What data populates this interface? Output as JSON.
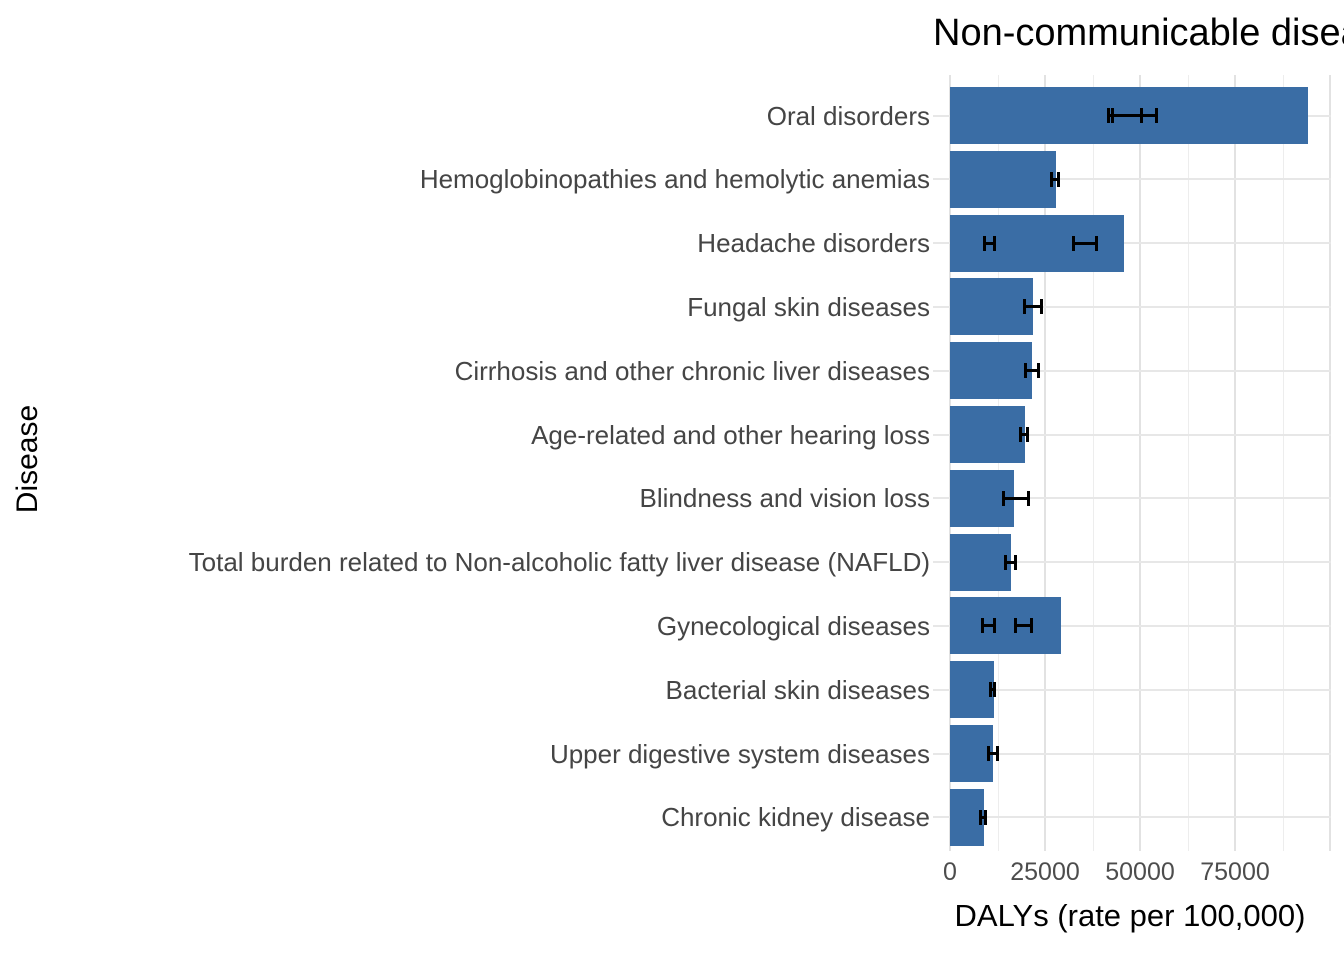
{
  "title": "Non-communicable diseases",
  "axes": {
    "x_title": "DALYs (rate per 100,000)",
    "y_title": "Disease"
  },
  "colors": {
    "bar": "#3a6da5",
    "error_bar": "#000000",
    "grid_major": "#e2e2e2",
    "grid_minor": "#ededed",
    "axis_text": "#454545",
    "tick_text": "#4d4d4d",
    "title_text": "#000000",
    "background": "#ffffff"
  },
  "chart_data": {
    "type": "bar",
    "orientation": "horizontal",
    "title": "Non-communicable diseases",
    "xlabel": "DALYs (rate per 100,000)",
    "ylabel": "Disease",
    "grid": true,
    "legend_position": "none",
    "x_ticks": [
      0,
      25000,
      50000,
      75000
    ],
    "x_tick_labels": [
      "0",
      "25000",
      "50000",
      "75000"
    ],
    "x_minor_ticks": [
      12500,
      37500,
      62500,
      87500
    ],
    "x_grid_extent": 100000,
    "xlim_visible": [
      0,
      103500
    ],
    "categories": [
      "Oral disorders",
      "Hemoglobinopathies and hemolytic anemias",
      "Headache disorders",
      "Fungal skin diseases",
      "Cirrhosis and other chronic liver diseases",
      "Age-related and other hearing loss",
      "Blindness and vision loss",
      "Total burden related to Non-alcoholic fatty liver disease (NAFLD)",
      "Gynecological diseases",
      "Bacterial skin diseases",
      "Upper digestive system diseases",
      "Chronic kidney disease"
    ],
    "values": [
      94200,
      27900,
      45800,
      21900,
      21600,
      19700,
      16900,
      16100,
      29100,
      11500,
      11400,
      9000
    ],
    "error_bars_low_high": [
      [
        [
          41700,
          50400
        ],
        [
          42600,
          54400
        ]
      ],
      [
        [
          26500,
          28800
        ]
      ],
      [
        [
          8900,
          11800
        ],
        [
          32400,
          38600
        ]
      ],
      [
        [
          19500,
          24100
        ]
      ],
      [
        [
          19700,
          23500
        ]
      ],
      [
        [
          18400,
          20600
        ]
      ],
      [
        [
          13900,
          20900
        ]
      ],
      [
        [
          14500,
          17400
        ]
      ],
      [
        [
          8300,
          11800
        ],
        [
          17100,
          21500
        ]
      ],
      [
        [
          10600,
          11800
        ]
      ],
      [
        [
          9900,
          12700
        ]
      ],
      [
        [
          7900,
          9500
        ]
      ]
    ]
  }
}
